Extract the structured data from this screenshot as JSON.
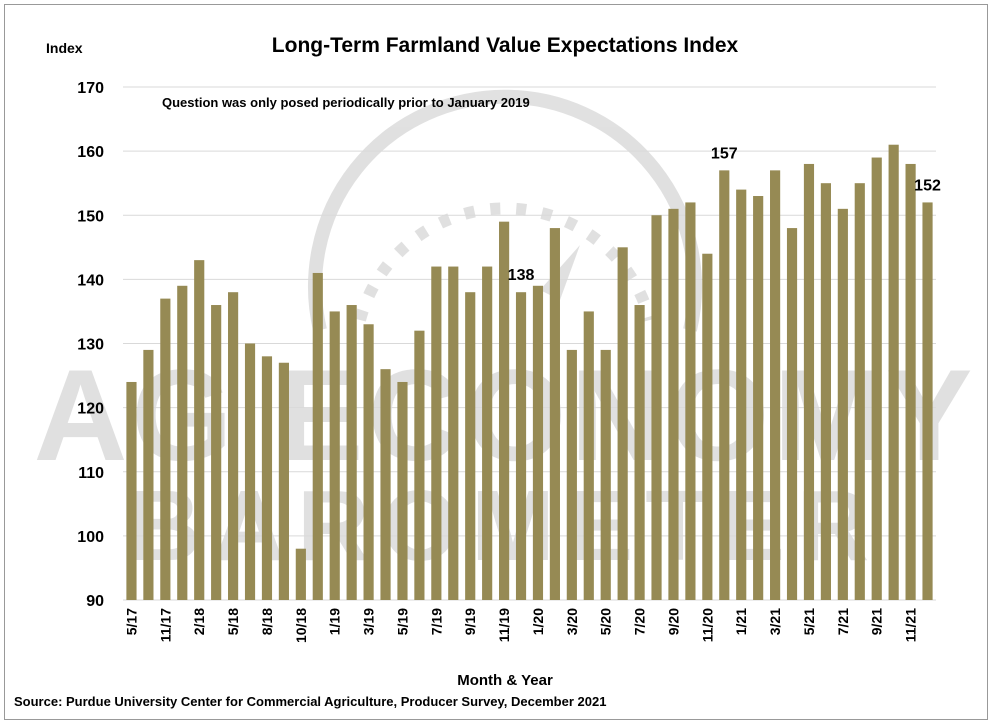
{
  "chart_data": {
    "type": "bar",
    "title": "Long-Term Farmland Value Expectations Index",
    "ylabel": "Index",
    "xlabel": "Month & Year",
    "source": "Source: Purdue University Center for Commercial Agriculture, Producer Survey, December 2021",
    "annotation": "Question was only posed periodically prior to January 2019",
    "ylim": [
      90,
      170
    ],
    "yticks": [
      90,
      100,
      110,
      120,
      130,
      140,
      150,
      160,
      170
    ],
    "grid": true,
    "bar_color": "#968A54",
    "categories": [
      "5/17",
      "",
      "11/17",
      "",
      "2/18",
      "",
      "5/18",
      "",
      "8/18",
      "",
      "10/18",
      "",
      "1/19",
      "",
      "3/19",
      "",
      "5/19",
      "",
      "7/19",
      "",
      "9/19",
      "",
      "11/19",
      "",
      "1/20",
      "",
      "3/20",
      "",
      "5/20",
      "",
      "7/20",
      "",
      "9/20",
      "",
      "11/20",
      "",
      "1/21",
      "",
      "3/21",
      "",
      "5/21",
      "",
      "7/21",
      "",
      "9/21",
      "",
      "11/21",
      ""
    ],
    "values": [
      124,
      129,
      137,
      139,
      143,
      136,
      138,
      130,
      128,
      127,
      98,
      141,
      135,
      136,
      133,
      126,
      124,
      132,
      142,
      142,
      138,
      142,
      149,
      138,
      139,
      148,
      129,
      135,
      129,
      145,
      136,
      150,
      151,
      152,
      144,
      157,
      154,
      153,
      157,
      148,
      158,
      155,
      151,
      155,
      159,
      161,
      158,
      152
    ],
    "data_labels": [
      {
        "index": 23,
        "text": "138"
      },
      {
        "index": 35,
        "text": "157"
      },
      {
        "index": 47,
        "text": "152"
      }
    ],
    "watermark": "AG ECONOMY BAROMETER"
  }
}
